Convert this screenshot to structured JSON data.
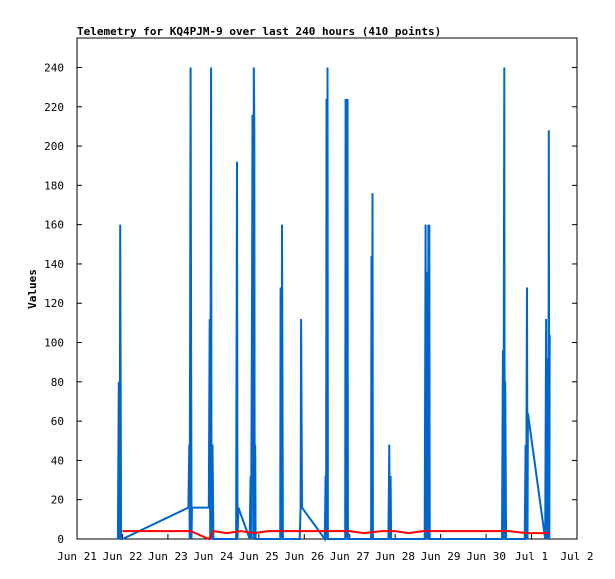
{
  "chart_data": {
    "type": "line",
    "title": "Telemetry for KQ4PJM-9 over last 240 hours (410 points)",
    "xlabel": "",
    "ylabel": "Values",
    "xlim": [
      "Jun 21",
      "Jul 2"
    ],
    "ylim": [
      0,
      255
    ],
    "x_ticks": [
      "Jun 21",
      "Jun 22",
      "Jun 23",
      "Jun 24",
      "Jun 25",
      "Jun 26",
      "Jun 27",
      "Jun 28",
      "Jun 29",
      "Jun 30",
      "Jul 1",
      "Jul 2"
    ],
    "y_ticks": [
      0,
      20,
      40,
      60,
      80,
      100,
      120,
      140,
      160,
      180,
      200,
      220,
      240
    ],
    "grid": false,
    "legend": "none",
    "colors": {
      "blue": "#0066cc",
      "red": "#ff0000"
    },
    "series": [
      {
        "color": "#0066cc",
        "x": [
          21.9,
          21.92,
          21.94,
          21.95,
          21.97,
          22.0,
          23.45,
          23.47,
          23.48,
          23.5,
          23.52,
          23.53,
          23.9,
          23.92,
          23.93,
          23.95,
          23.96,
          23.98,
          24.0,
          24.02,
          24.5,
          24.52,
          24.53,
          24.55,
          24.8,
          24.82,
          24.83,
          24.85,
          24.86,
          24.88,
          24.89,
          24.9,
          24.91,
          24.92,
          24.93,
          24.94,
          24.95,
          25.47,
          25.48,
          25.5,
          25.51,
          25.53,
          25.9,
          25.92,
          25.93,
          25.95,
          26.45,
          26.46,
          26.47,
          26.48,
          26.49,
          26.5,
          26.51,
          26.52,
          26.9,
          26.91,
          26.92,
          26.93,
          26.94,
          26.95,
          26.96,
          27.47,
          27.48,
          27.49,
          27.5,
          27.51,
          27.52,
          27.85,
          27.87,
          27.88,
          27.9,
          27.91,
          28.65,
          28.67,
          28.68,
          28.7,
          28.72,
          28.73,
          28.74,
          28.75,
          28.76,
          30.35,
          30.37,
          30.38,
          30.4,
          30.41,
          30.42,
          30.44,
          30.45,
          30.85,
          30.87,
          30.88,
          30.9,
          30.91,
          30.92,
          31.3,
          31.32,
          31.33,
          31.34,
          31.35,
          31.36,
          31.37,
          31.38,
          31.39,
          31.4
        ],
        "y": [
          0,
          80,
          0,
          160,
          0,
          0,
          16,
          48,
          0,
          240,
          0,
          16,
          16,
          112,
          0,
          240,
          0,
          48,
          0,
          0,
          0,
          192,
          0,
          16,
          0,
          32,
          0,
          120,
          216,
          0,
          240,
          208,
          0,
          48,
          0,
          0,
          0,
          0,
          128,
          0,
          160,
          0,
          0,
          16,
          112,
          16,
          0,
          16,
          32,
          0,
          224,
          0,
          240,
          0,
          0,
          224,
          0,
          224,
          0,
          224,
          0,
          0,
          144,
          0,
          176,
          0,
          0,
          0,
          48,
          0,
          32,
          0,
          0,
          160,
          0,
          136,
          0,
          160,
          0,
          160,
          0,
          0,
          96,
          0,
          240,
          0,
          80,
          0,
          0,
          0,
          48,
          0,
          128,
          0,
          64,
          0,
          112,
          0,
          16,
          0,
          92,
          0,
          208,
          0,
          104
        ]
      },
      {
        "color": "#ff0000",
        "x": [
          22.0,
          22.5,
          23.0,
          23.5,
          23.9,
          24.0,
          24.3,
          24.6,
          24.9,
          25.2,
          25.5,
          26.0,
          26.5,
          27.0,
          27.3,
          27.7,
          28.0,
          28.3,
          28.6,
          29.0,
          29.5,
          30.0,
          30.5,
          30.9,
          31.2,
          31.4
        ],
        "y": [
          4,
          4,
          4,
          4,
          0,
          4,
          3,
          4,
          3,
          4,
          4,
          4,
          4,
          4,
          3,
          4,
          4,
          3,
          4,
          4,
          4,
          4,
          4,
          3,
          3,
          3
        ]
      }
    ]
  }
}
